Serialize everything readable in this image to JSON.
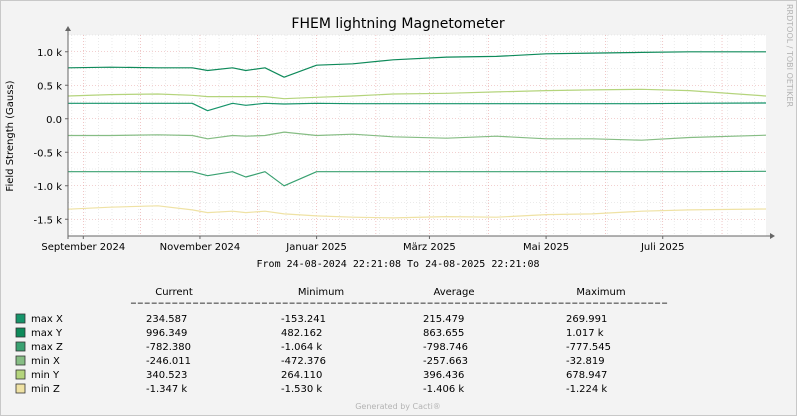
{
  "chart_data": {
    "type": "line",
    "title": "FHEM lightning Magnetometer",
    "ylabel": "Field Strength (Gauss)",
    "watermark": "RRDTOOL / TOBI OETIKER",
    "footer": "Generated by Cacti®",
    "ylim": [
      -1750,
      1250
    ],
    "y_ticks": [
      {
        "v": 1000,
        "label": "1.0 k"
      },
      {
        "v": 500,
        "label": "0.5 k"
      },
      {
        "v": 0,
        "label": "0.0"
      },
      {
        "v": -500,
        "label": "-0.5 k"
      },
      {
        "v": -1000,
        "label": "-1.0 k"
      },
      {
        "v": -1500,
        "label": "-1.5 k"
      }
    ],
    "x_range": [
      "2024-08-24",
      "2025-08-24"
    ],
    "x_ticks": [
      {
        "date": "2024-09-01",
        "label": "September 2024"
      },
      {
        "date": "2024-11-01",
        "label": "November 2024"
      },
      {
        "date": "2025-01-01",
        "label": "Januar 2025"
      },
      {
        "date": "2025-03-01",
        "label": "März 2025"
      },
      {
        "date": "2025-05-01",
        "label": "Mai 2025"
      },
      {
        "date": "2025-07-01",
        "label": "Juli 2025"
      }
    ],
    "x_subheader": "From 24-08-2024 22:21:08 To 24-08-2025 22:21:08",
    "grid": true,
    "x_dates": [
      "2024-08-24",
      "2024-09-15",
      "2024-10-10",
      "2024-10-28",
      "2024-11-05",
      "2024-11-18",
      "2024-11-25",
      "2024-12-05",
      "2024-12-15",
      "2025-01-01",
      "2025-01-20",
      "2025-02-10",
      "2025-03-10",
      "2025-04-05",
      "2025-05-01",
      "2025-05-25",
      "2025-06-20",
      "2025-07-15",
      "2025-08-24"
    ],
    "legend_headers": {
      "current": "Current",
      "minimum": "Minimum",
      "average": "Average",
      "maximum": "Maximum"
    },
    "legend_rule": "------------------------------------------------------------------------------",
    "series": [
      {
        "name": "max X",
        "color": "#16946a",
        "values": [
          230,
          230,
          230,
          230,
          120,
          230,
          200,
          230,
          220,
          230,
          225,
          225,
          225,
          225,
          225,
          225,
          225,
          230,
          235
        ],
        "current": "234.587",
        "minimum": "-153.241",
        "average": "215.479",
        "maximum": "269.991"
      },
      {
        "name": "max Y",
        "color": "#0e8a5a",
        "values": [
          760,
          770,
          760,
          760,
          720,
          760,
          720,
          760,
          620,
          800,
          820,
          880,
          920,
          930,
          970,
          980,
          990,
          1000,
          1000
        ],
        "current": "996.349",
        "minimum": "482.162",
        "average": "863.655",
        "maximum": "1.017  k"
      },
      {
        "name": "max Z",
        "color": "#3aa171",
        "values": [
          -790,
          -790,
          -790,
          -790,
          -850,
          -790,
          -870,
          -790,
          -1000,
          -790,
          -790,
          -790,
          -790,
          -790,
          -790,
          -790,
          -790,
          -790,
          -785
        ],
        "current": "-782.380",
        "minimum": "-1.064  k",
        "average": "-798.746",
        "maximum": "-777.545"
      },
      {
        "name": "min X",
        "color": "#86bd84",
        "values": [
          -250,
          -250,
          -240,
          -250,
          -300,
          -250,
          -260,
          -250,
          -200,
          -250,
          -230,
          -270,
          -290,
          -260,
          -300,
          -300,
          -320,
          -280,
          -246
        ],
        "current": "-246.011",
        "minimum": "-472.376",
        "average": "-257.663",
        "maximum": "-32.819"
      },
      {
        "name": "min Y",
        "color": "#b4d47c",
        "values": [
          340,
          360,
          370,
          350,
          330,
          330,
          330,
          330,
          300,
          320,
          340,
          370,
          380,
          400,
          420,
          430,
          440,
          420,
          340
        ],
        "current": "340.523",
        "minimum": "264.110",
        "average": "396.436",
        "maximum": "678.947"
      },
      {
        "name": "min Z",
        "color": "#efe2a4",
        "values": [
          -1350,
          -1320,
          -1300,
          -1360,
          -1400,
          -1380,
          -1400,
          -1380,
          -1420,
          -1450,
          -1470,
          -1480,
          -1460,
          -1470,
          -1430,
          -1420,
          -1380,
          -1360,
          -1347
        ],
        "current": "-1.347  k",
        "minimum": "-1.530  k",
        "average": "-1.406  k",
        "maximum": "-1.224  k"
      }
    ]
  }
}
